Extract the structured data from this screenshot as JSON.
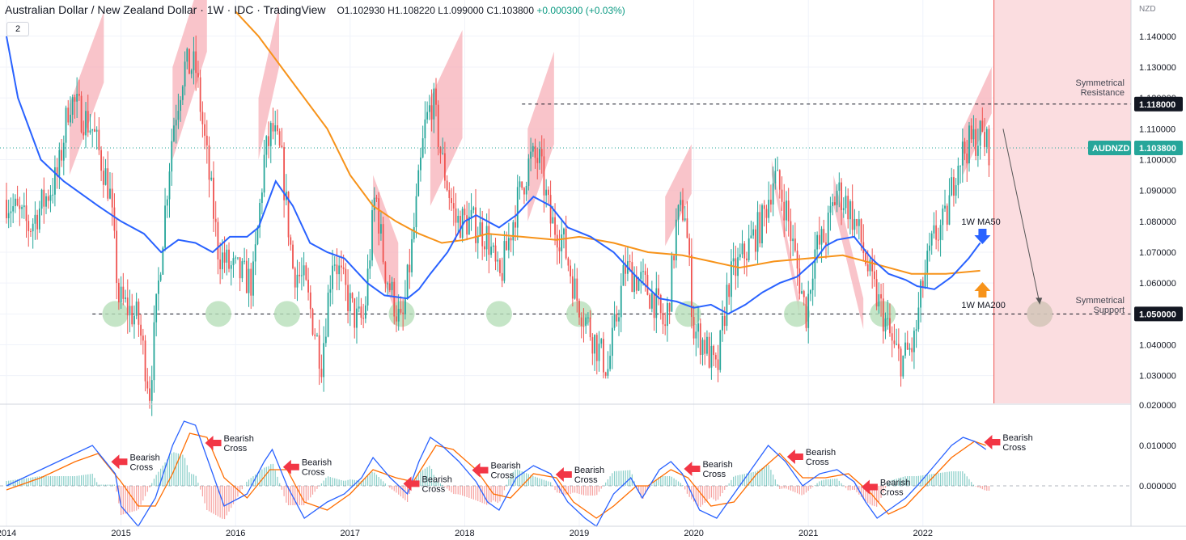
{
  "header": {
    "title": "Australian Dollar / New Zealand Dollar · 1W · IDC · TradingView",
    "open": "O1.102930",
    "high": "H1.108220",
    "low": "L1.099000",
    "close": "C1.103800",
    "change": "+0.000300 (+0.03%)",
    "collapse_badge": "2"
  },
  "colors": {
    "up": "#26a69a",
    "down": "#ef5350",
    "ma50": "#2962ff",
    "ma200": "#f7931a",
    "zone_fill": "#f7b0b8",
    "circle_fill": "#b7dfb9",
    "arrow_red": "#f23645",
    "symbol_badge": "#26a69a"
  },
  "price_axis": {
    "unit": "NZD",
    "ticks": [
      "1.140000",
      "1.130000",
      "1.120000",
      "1.110000",
      "1.100000",
      "1.090000",
      "1.080000",
      "1.070000",
      "1.060000",
      "1.050000",
      "1.040000",
      "1.030000"
    ],
    "ylim": [
      1.021,
      1.1465
    ]
  },
  "macd_axis": {
    "ticks": [
      "0.020000",
      "0.010000",
      "0.000000"
    ],
    "ylim": [
      -0.01,
      0.02
    ]
  },
  "time_axis": {
    "labels": [
      "2014",
      "2015",
      "2016",
      "2017",
      "2018",
      "2019",
      "2020",
      "2021",
      "2022"
    ]
  },
  "labels": {
    "symbol": "AUDNZD",
    "last_price": "1.103800",
    "resistance_price": "1.118000",
    "support_price": "1.050000",
    "resistance_text_1": "Symmetrical",
    "resistance_text_2": "Resistance",
    "support_text_1": "Symmetrical",
    "support_text_2": "Support",
    "ma50": "1W MA50",
    "ma200": "1W MA200",
    "bearish_1": "Bearish",
    "bearish_2": "Cross"
  },
  "chart_data": [
    {
      "type": "candlestick",
      "title": "Australian Dollar / New Zealand Dollar",
      "x": [
        "2014",
        "2015",
        "2016",
        "2017",
        "2018",
        "2019",
        "2020",
        "2021",
        "2022"
      ],
      "close_path": [
        [
          2014.0,
          1.087
        ],
        [
          2014.2,
          1.078
        ],
        [
          2014.45,
          1.095
        ],
        [
          2014.55,
          1.12
        ],
        [
          2014.75,
          1.11
        ],
        [
          2014.9,
          1.09
        ],
        [
          2014.98,
          1.055
        ],
        [
          2015.15,
          1.048
        ],
        [
          2015.25,
          1.025
        ],
        [
          2015.35,
          1.07
        ],
        [
          2015.45,
          1.11
        ],
        [
          2015.55,
          1.13
        ],
        [
          2015.65,
          1.13
        ],
        [
          2015.75,
          1.1
        ],
        [
          2015.85,
          1.07
        ],
        [
          2015.95,
          1.065
        ],
        [
          2016.15,
          1.06
        ],
        [
          2016.25,
          1.1
        ],
        [
          2016.32,
          1.11
        ],
        [
          2016.4,
          1.1
        ],
        [
          2016.5,
          1.065
        ],
        [
          2016.6,
          1.06
        ],
        [
          2016.75,
          1.035
        ],
        [
          2016.85,
          1.07
        ],
        [
          2016.95,
          1.058
        ],
        [
          2017.05,
          1.048
        ],
        [
          2017.12,
          1.048
        ],
        [
          2017.22,
          1.09
        ],
        [
          2017.3,
          1.065
        ],
        [
          2017.45,
          1.045
        ],
        [
          2017.55,
          1.075
        ],
        [
          2017.65,
          1.11
        ],
        [
          2017.72,
          1.12
        ],
        [
          2017.8,
          1.1
        ],
        [
          2017.92,
          1.08
        ],
        [
          2018.05,
          1.08
        ],
        [
          2018.2,
          1.075
        ],
        [
          2018.3,
          1.06
        ],
        [
          2018.45,
          1.085
        ],
        [
          2018.57,
          1.1
        ],
        [
          2018.65,
          1.1
        ],
        [
          2018.75,
          1.08
        ],
        [
          2018.85,
          1.075
        ],
        [
          2018.98,
          1.055
        ],
        [
          2019.15,
          1.04
        ],
        [
          2019.25,
          1.032
        ],
        [
          2019.4,
          1.065
        ],
        [
          2019.55,
          1.06
        ],
        [
          2019.65,
          1.055
        ],
        [
          2019.75,
          1.045
        ],
        [
          2019.8,
          1.06
        ],
        [
          2019.85,
          1.08
        ],
        [
          2019.92,
          1.085
        ],
        [
          2020.0,
          1.045
        ],
        [
          2020.1,
          1.04
        ],
        [
          2020.2,
          1.03
        ],
        [
          2020.3,
          1.06
        ],
        [
          2020.45,
          1.07
        ],
        [
          2020.6,
          1.08
        ],
        [
          2020.7,
          1.095
        ],
        [
          2020.8,
          1.085
        ],
        [
          2020.9,
          1.065
        ],
        [
          2020.98,
          1.05
        ],
        [
          2021.05,
          1.07
        ],
        [
          2021.15,
          1.075
        ],
        [
          2021.25,
          1.09
        ],
        [
          2021.35,
          1.085
        ],
        [
          2021.45,
          1.075
        ],
        [
          2021.55,
          1.06
        ],
        [
          2021.65,
          1.05
        ],
        [
          2021.75,
          1.038
        ],
        [
          2021.82,
          1.035
        ],
        [
          2021.92,
          1.04
        ],
        [
          2022.0,
          1.06
        ],
        [
          2022.1,
          1.075
        ],
        [
          2022.2,
          1.08
        ],
        [
          2022.3,
          1.1
        ],
        [
          2022.4,
          1.105
        ],
        [
          2022.5,
          1.108
        ],
        [
          2022.58,
          1.1038
        ]
      ],
      "ma50": [
        [
          2014.0,
          1.14
        ],
        [
          2014.1,
          1.12
        ],
        [
          2014.3,
          1.1
        ],
        [
          2014.5,
          1.093
        ],
        [
          2014.8,
          1.085
        ],
        [
          2015.0,
          1.08
        ],
        [
          2015.2,
          1.076
        ],
        [
          2015.35,
          1.07
        ],
        [
          2015.5,
          1.074
        ],
        [
          2015.65,
          1.073
        ],
        [
          2015.8,
          1.07
        ],
        [
          2015.95,
          1.075
        ],
        [
          2016.1,
          1.075
        ],
        [
          2016.2,
          1.078
        ],
        [
          2016.35,
          1.093
        ],
        [
          2016.5,
          1.085
        ],
        [
          2016.65,
          1.073
        ],
        [
          2016.8,
          1.07
        ],
        [
          2016.95,
          1.068
        ],
        [
          2017.15,
          1.06
        ],
        [
          2017.3,
          1.056
        ],
        [
          2017.5,
          1.055
        ],
        [
          2017.6,
          1.058
        ],
        [
          2017.7,
          1.063
        ],
        [
          2017.85,
          1.07
        ],
        [
          2018.0,
          1.08
        ],
        [
          2018.1,
          1.082
        ],
        [
          2018.3,
          1.078
        ],
        [
          2018.45,
          1.082
        ],
        [
          2018.6,
          1.088
        ],
        [
          2018.75,
          1.085
        ],
        [
          2018.9,
          1.078
        ],
        [
          2019.1,
          1.075
        ],
        [
          2019.3,
          1.07
        ],
        [
          2019.5,
          1.062
        ],
        [
          2019.7,
          1.055
        ],
        [
          2019.85,
          1.054
        ],
        [
          2020.0,
          1.052
        ],
        [
          2020.15,
          1.053
        ],
        [
          2020.3,
          1.05
        ],
        [
          2020.45,
          1.053
        ],
        [
          2020.6,
          1.057
        ],
        [
          2020.75,
          1.06
        ],
        [
          2020.9,
          1.062
        ],
        [
          2021.05,
          1.067
        ],
        [
          2021.15,
          1.072
        ],
        [
          2021.25,
          1.074
        ],
        [
          2021.4,
          1.075
        ],
        [
          2021.55,
          1.068
        ],
        [
          2021.7,
          1.063
        ],
        [
          2021.85,
          1.061
        ],
        [
          2021.95,
          1.059
        ],
        [
          2022.1,
          1.058
        ],
        [
          2022.25,
          1.062
        ],
        [
          2022.4,
          1.068
        ],
        [
          2022.5,
          1.073
        ]
      ],
      "ma200": [
        [
          2016.0,
          1.148
        ],
        [
          2016.2,
          1.14
        ],
        [
          2016.5,
          1.125
        ],
        [
          2016.8,
          1.11
        ],
        [
          2017.0,
          1.095
        ],
        [
          2017.2,
          1.085
        ],
        [
          2017.4,
          1.08
        ],
        [
          2017.6,
          1.076
        ],
        [
          2017.8,
          1.073
        ],
        [
          2018.0,
          1.074
        ],
        [
          2018.2,
          1.076
        ],
        [
          2018.5,
          1.075
        ],
        [
          2018.8,
          1.074
        ],
        [
          2019.0,
          1.075
        ],
        [
          2019.3,
          1.073
        ],
        [
          2019.6,
          1.07
        ],
        [
          2019.9,
          1.069
        ],
        [
          2020.15,
          1.067
        ],
        [
          2020.4,
          1.065
        ],
        [
          2020.7,
          1.067
        ],
        [
          2021.0,
          1.068
        ],
        [
          2021.3,
          1.069
        ],
        [
          2021.6,
          1.066
        ],
        [
          2021.9,
          1.063
        ],
        [
          2022.2,
          1.063
        ],
        [
          2022.5,
          1.064
        ]
      ],
      "resistance": 1.118,
      "support": 1.05,
      "support_touches": [
        2014.95,
        2015.85,
        2016.45,
        2017.45,
        2018.3,
        2019.0,
        2019.95,
        2020.9,
        2021.65
      ],
      "projection_target_x": 2023.02
    },
    {
      "type": "line",
      "title": "MACD",
      "macd": [
        [
          2014.0,
          0.0
        ],
        [
          2014.3,
          0.004
        ],
        [
          2014.6,
          0.008
        ],
        [
          2014.75,
          0.01
        ],
        [
          2014.95,
          0.003
        ],
        [
          2015.0,
          -0.005
        ],
        [
          2015.15,
          -0.01
        ],
        [
          2015.3,
          -0.003
        ],
        [
          2015.45,
          0.01
        ],
        [
          2015.55,
          0.016
        ],
        [
          2015.65,
          0.015
        ],
        [
          2015.8,
          0.003
        ],
        [
          2015.9,
          -0.005
        ],
        [
          2016.1,
          -0.002
        ],
        [
          2016.25,
          0.006
        ],
        [
          2016.32,
          0.009
        ],
        [
          2016.45,
          0.0
        ],
        [
          2016.6,
          -0.008
        ],
        [
          2016.8,
          -0.004
        ],
        [
          2016.95,
          -0.002
        ],
        [
          2017.1,
          0.002
        ],
        [
          2017.2,
          0.007
        ],
        [
          2017.35,
          0.002
        ],
        [
          2017.5,
          -0.002
        ],
        [
          2017.6,
          0.006
        ],
        [
          2017.7,
          0.012
        ],
        [
          2017.8,
          0.01
        ],
        [
          2017.95,
          0.006
        ],
        [
          2018.1,
          0.001
        ],
        [
          2018.2,
          -0.004
        ],
        [
          2018.3,
          -0.006
        ],
        [
          2018.45,
          0.002
        ],
        [
          2018.6,
          0.005
        ],
        [
          2018.75,
          0.003
        ],
        [
          2018.9,
          -0.004
        ],
        [
          2019.05,
          -0.008
        ],
        [
          2019.15,
          -0.01
        ],
        [
          2019.3,
          -0.002
        ],
        [
          2019.45,
          0.002
        ],
        [
          2019.55,
          -0.003
        ],
        [
          2019.7,
          0.004
        ],
        [
          2019.8,
          0.006
        ],
        [
          2019.9,
          0.003
        ],
        [
          2020.05,
          -0.006
        ],
        [
          2020.2,
          -0.008
        ],
        [
          2020.35,
          -0.002
        ],
        [
          2020.5,
          0.004
        ],
        [
          2020.65,
          0.01
        ],
        [
          2020.8,
          0.006
        ],
        [
          2020.95,
          0.0
        ],
        [
          2021.1,
          0.003
        ],
        [
          2021.25,
          0.004
        ],
        [
          2021.4,
          0.001
        ],
        [
          2021.5,
          -0.004
        ],
        [
          2021.6,
          -0.008
        ],
        [
          2021.7,
          -0.006
        ],
        [
          2021.85,
          -0.003
        ],
        [
          2021.95,
          0.0
        ],
        [
          2022.1,
          0.005
        ],
        [
          2022.25,
          0.01
        ],
        [
          2022.35,
          0.012
        ],
        [
          2022.45,
          0.011
        ],
        [
          2022.55,
          0.009
        ]
      ],
      "signal": [
        [
          2014.0,
          -0.001
        ],
        [
          2014.3,
          0.002
        ],
        [
          2014.6,
          0.006
        ],
        [
          2014.8,
          0.008
        ],
        [
          2015.0,
          0.001
        ],
        [
          2015.15,
          -0.005
        ],
        [
          2015.3,
          -0.005
        ],
        [
          2015.45,
          0.003
        ],
        [
          2015.6,
          0.013
        ],
        [
          2015.75,
          0.012
        ],
        [
          2015.9,
          0.002
        ],
        [
          2016.1,
          -0.003
        ],
        [
          2016.3,
          0.004
        ],
        [
          2016.45,
          0.004
        ],
        [
          2016.6,
          -0.004
        ],
        [
          2016.8,
          -0.006
        ],
        [
          2017.0,
          -0.002
        ],
        [
          2017.2,
          0.004
        ],
        [
          2017.4,
          0.002
        ],
        [
          2017.55,
          0.001
        ],
        [
          2017.75,
          0.01
        ],
        [
          2017.9,
          0.009
        ],
        [
          2018.1,
          0.004
        ],
        [
          2018.25,
          -0.002
        ],
        [
          2018.4,
          -0.003
        ],
        [
          2018.6,
          0.003
        ],
        [
          2018.8,
          0.002
        ],
        [
          2018.95,
          -0.004
        ],
        [
          2019.15,
          -0.008
        ],
        [
          2019.3,
          -0.005
        ],
        [
          2019.5,
          0.0
        ],
        [
          2019.6,
          0.0
        ],
        [
          2019.8,
          0.004
        ],
        [
          2019.95,
          0.002
        ],
        [
          2020.15,
          -0.005
        ],
        [
          2020.35,
          -0.004
        ],
        [
          2020.55,
          0.003
        ],
        [
          2020.75,
          0.008
        ],
        [
          2020.95,
          0.002
        ],
        [
          2021.15,
          0.002
        ],
        [
          2021.35,
          0.003
        ],
        [
          2021.55,
          -0.002
        ],
        [
          2021.7,
          -0.007
        ],
        [
          2021.85,
          -0.005
        ],
        [
          2022.05,
          0.001
        ],
        [
          2022.25,
          0.007
        ],
        [
          2022.45,
          0.011
        ],
        [
          2022.55,
          0.01
        ]
      ],
      "bearish_cross_years": [
        2014.9,
        2015.72,
        2016.4,
        2017.45,
        2018.05,
        2018.78,
        2019.9,
        2020.8,
        2021.45,
        2022.52
      ]
    }
  ]
}
